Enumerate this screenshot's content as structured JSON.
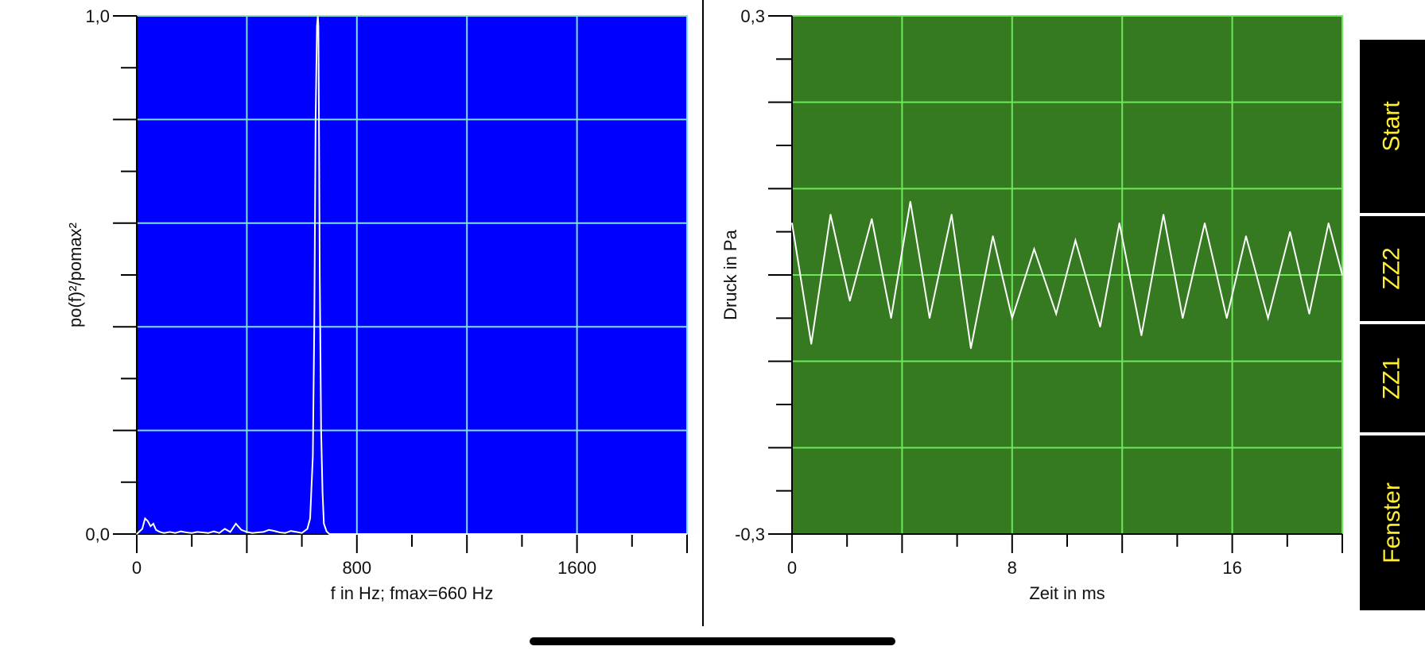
{
  "buttons": {
    "start": "Start",
    "zz2": "ZZ2",
    "zz1": "ZZ1",
    "fenster": "Fenster"
  },
  "colors": {
    "spectrum_bg": "#0000ff",
    "spectrum_grid": "#7fe0e6",
    "time_bg": "#357a20",
    "time_grid": "#6ee85a",
    "trace": "#ffffff",
    "button_text": "#ffee33"
  },
  "chart_data": [
    {
      "type": "line",
      "ylabel": "po(f)²/pomax²",
      "xlabel": "f in Hz; fmax=660 Hz",
      "xlim": [
        0,
        2000
      ],
      "ylim": [
        0,
        1
      ],
      "x_tick_labels": [
        {
          "x": 0,
          "label": "0"
        },
        {
          "x": 800,
          "label": "800"
        },
        {
          "x": 1600,
          "label": "1600"
        }
      ],
      "y_tick_labels": [
        {
          "y": 1,
          "label": "1,0"
        },
        {
          "y": 0,
          "label": "0,0"
        }
      ],
      "grid": true,
      "series": [
        {
          "x": [
            0,
            20,
            30,
            40,
            50,
            60,
            70,
            80,
            90,
            100,
            120,
            140,
            160,
            180,
            200,
            220,
            240,
            260,
            280,
            300,
            320,
            340,
            360,
            380,
            400,
            420,
            440,
            460,
            480,
            500,
            520,
            540,
            560,
            580,
            600,
            620,
            630,
            640,
            645,
            650,
            655,
            658,
            660,
            662,
            665,
            670,
            675,
            680,
            690,
            700,
            2000
          ],
          "y": [
            0,
            0.01,
            0.03,
            0.025,
            0.015,
            0.02,
            0.008,
            0.005,
            0.003,
            0.002,
            0.004,
            0.002,
            0.005,
            0.003,
            0.002,
            0.004,
            0.003,
            0.002,
            0.005,
            0.002,
            0.01,
            0.004,
            0.02,
            0.008,
            0.004,
            0.002,
            0.003,
            0.004,
            0.008,
            0.006,
            0.003,
            0.002,
            0.006,
            0.004,
            0.002,
            0.01,
            0.03,
            0.15,
            0.4,
            0.8,
            0.98,
            1.0,
            0.98,
            0.8,
            0.5,
            0.2,
            0.08,
            0.02,
            0.005,
            0,
            0
          ]
        }
      ]
    },
    {
      "type": "line",
      "ylabel": "Druck in Pa",
      "xlabel": "Zeit in ms",
      "xlim": [
        0,
        20
      ],
      "ylim": [
        -0.3,
        0.3
      ],
      "x_tick_labels": [
        {
          "x": 0,
          "label": "0"
        },
        {
          "x": 8,
          "label": "8"
        },
        {
          "x": 16,
          "label": "16"
        }
      ],
      "y_tick_labels": [
        {
          "y": 0.3,
          "label": "0,3"
        },
        {
          "y": -0.3,
          "label": "-0,3"
        }
      ],
      "grid": true,
      "series": [
        {
          "x": [
            0,
            0.7,
            1.4,
            2.1,
            2.9,
            3.6,
            4.3,
            5.0,
            5.8,
            6.5,
            7.3,
            8.0,
            8.8,
            9.6,
            10.3,
            11.2,
            11.9,
            12.7,
            13.5,
            14.2,
            15.0,
            15.8,
            16.5,
            17.3,
            18.1,
            18.8,
            19.5,
            20.0
          ],
          "y": [
            0.06,
            -0.08,
            0.07,
            -0.03,
            0.065,
            -0.05,
            0.085,
            -0.05,
            0.07,
            -0.085,
            0.045,
            -0.05,
            0.03,
            -0.045,
            0.04,
            -0.06,
            0.06,
            -0.07,
            0.07,
            -0.05,
            0.06,
            -0.05,
            0.045,
            -0.05,
            0.05,
            -0.045,
            0.06,
            0.0
          ]
        }
      ]
    }
  ]
}
